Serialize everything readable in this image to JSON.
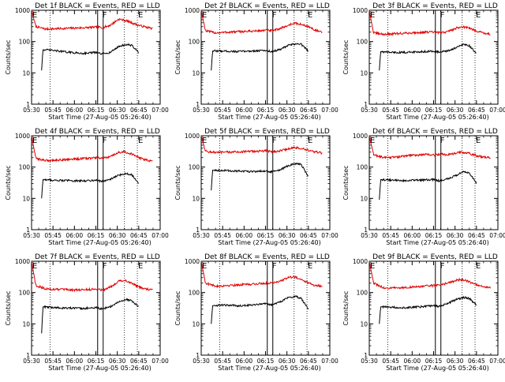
{
  "chart_data": [
    {
      "type": "line",
      "title": "Det 1f BLACK = Events, RED = LLD",
      "xlabel": "Start Time (27-Aug-05 05:26:40)",
      "ylabel": "Counts/sec",
      "yscale": "log",
      "ylim": [
        1,
        1000
      ],
      "xlim": [
        "05:30",
        "07:00"
      ],
      "x_ticks": [
        "05:30",
        "05:45",
        "06:00",
        "06:15",
        "06:30",
        "06:45",
        "07:00"
      ],
      "y_ticks": [
        "1",
        "10",
        "100",
        "1000"
      ],
      "markers": [
        {
          "time": "05:30",
          "label": "E"
        },
        {
          "time": "06:19",
          "label": "F"
        },
        {
          "time": "06:44",
          "label": "E"
        }
      ],
      "series": [
        {
          "name": "LLD",
          "color": "#e00000",
          "x": [
            "05:30",
            "05:33",
            "05:40",
            "05:50",
            "06:00",
            "06:10",
            "06:16",
            "06:20",
            "06:25",
            "06:31",
            "06:35",
            "06:40",
            "06:45",
            "06:50",
            "06:55"
          ],
          "values": [
            1000,
            300,
            250,
            260,
            270,
            280,
            290,
            280,
            330,
            520,
            480,
            400,
            330,
            290,
            260
          ]
        },
        {
          "name": "Events",
          "color": "#000000",
          "x": [
            "05:37",
            "05:38",
            "05:45",
            "05:55",
            "06:05",
            "06:15",
            "06:19",
            "06:25",
            "06:31",
            "06:36",
            "06:40",
            "06:45"
          ],
          "values": [
            12,
            55,
            52,
            46,
            42,
            45,
            40,
            45,
            70,
            80,
            76,
            45
          ]
        }
      ]
    },
    {
      "type": "line",
      "title": "Det 2f BLACK = Events, RED = LLD",
      "xlabel": "Start Time (27-Aug-05 05:26:40)",
      "ylabel": "Counts/sec",
      "yscale": "log",
      "ylim": [
        1,
        1000
      ],
      "xlim": [
        "05:30",
        "07:00"
      ],
      "x_ticks": [
        "05:30",
        "05:45",
        "06:00",
        "06:15",
        "06:30",
        "06:45",
        "07:00"
      ],
      "y_ticks": [
        "1",
        "10",
        "100",
        "1000"
      ],
      "markers": [
        {
          "time": "05:30",
          "label": "E"
        },
        {
          "time": "06:19",
          "label": "F"
        },
        {
          "time": "06:44",
          "label": "E"
        }
      ],
      "series": [
        {
          "name": "LLD",
          "color": "#e00000",
          "x": [
            "05:30",
            "05:33",
            "05:40",
            "05:50",
            "06:00",
            "06:10",
            "06:16",
            "06:20",
            "06:25",
            "06:31",
            "06:35",
            "06:40",
            "06:45",
            "06:50",
            "06:55"
          ],
          "values": [
            1000,
            220,
            190,
            200,
            210,
            220,
            230,
            220,
            260,
            330,
            390,
            350,
            300,
            230,
            190
          ]
        },
        {
          "name": "Events",
          "color": "#000000",
          "x": [
            "05:37",
            "05:38",
            "05:45",
            "05:55",
            "06:05",
            "06:15",
            "06:19",
            "06:25",
            "06:31",
            "06:36",
            "06:40",
            "06:45"
          ],
          "values": [
            12,
            50,
            50,
            48,
            50,
            52,
            48,
            55,
            75,
            85,
            82,
            50
          ]
        }
      ]
    },
    {
      "type": "line",
      "title": "Det 3f BLACK = Events, RED = LLD",
      "xlabel": "Start Time (27-Aug-05 05:26:40)",
      "ylabel": "Counts/sec",
      "yscale": "log",
      "ylim": [
        1,
        1000
      ],
      "xlim": [
        "05:30",
        "07:00"
      ],
      "x_ticks": [
        "05:30",
        "05:45",
        "06:00",
        "06:15",
        "06:30",
        "06:45",
        "07:00"
      ],
      "y_ticks": [
        "1",
        "10",
        "100",
        "1000"
      ],
      "markers": [
        {
          "time": "05:30",
          "label": "E"
        },
        {
          "time": "06:19",
          "label": "F"
        },
        {
          "time": "06:44",
          "label": "E"
        }
      ],
      "series": [
        {
          "name": "LLD",
          "color": "#e00000",
          "x": [
            "05:30",
            "05:33",
            "05:40",
            "05:50",
            "06:00",
            "06:10",
            "06:16",
            "06:20",
            "06:25",
            "06:31",
            "06:35",
            "06:40",
            "06:45",
            "06:50",
            "06:55"
          ],
          "values": [
            1000,
            190,
            170,
            180,
            190,
            200,
            200,
            190,
            210,
            270,
            300,
            270,
            220,
            190,
            170
          ]
        },
        {
          "name": "Events",
          "color": "#000000",
          "x": [
            "05:37",
            "05:38",
            "05:45",
            "05:55",
            "06:05",
            "06:15",
            "06:19",
            "06:25",
            "06:31",
            "06:36",
            "06:40",
            "06:45"
          ],
          "values": [
            12,
            48,
            45,
            45,
            47,
            50,
            46,
            50,
            65,
            80,
            75,
            40
          ]
        }
      ]
    },
    {
      "type": "line",
      "title": "Det 4f BLACK = Events, RED = LLD",
      "xlabel": "Start Time (27-Aug-05 05:26:40)",
      "ylabel": "Counts/sec",
      "yscale": "log",
      "ylim": [
        1,
        1000
      ],
      "xlim": [
        "05:30",
        "07:00"
      ],
      "x_ticks": [
        "05:30",
        "05:45",
        "06:00",
        "06:15",
        "06:30",
        "06:45",
        "07:00"
      ],
      "y_ticks": [
        "1",
        "10",
        "100",
        "1000"
      ],
      "markers": [
        {
          "time": "05:30",
          "label": "E"
        },
        {
          "time": "06:19",
          "label": "F"
        },
        {
          "time": "06:44",
          "label": "E"
        }
      ],
      "series": [
        {
          "name": "LLD",
          "color": "#e00000",
          "x": [
            "05:30",
            "05:33",
            "05:40",
            "05:50",
            "06:00",
            "06:10",
            "06:16",
            "06:20",
            "06:25",
            "06:31",
            "06:35",
            "06:40",
            "06:45",
            "06:50",
            "06:55"
          ],
          "values": [
            1000,
            190,
            160,
            170,
            180,
            190,
            200,
            190,
            210,
            290,
            310,
            260,
            200,
            170,
            150
          ]
        },
        {
          "name": "Events",
          "color": "#000000",
          "x": [
            "05:37",
            "05:38",
            "05:45",
            "05:55",
            "06:05",
            "06:15",
            "06:19",
            "06:25",
            "06:31",
            "06:36",
            "06:40",
            "06:45"
          ],
          "values": [
            10,
            40,
            38,
            37,
            36,
            38,
            35,
            40,
            55,
            62,
            58,
            30
          ]
        }
      ]
    },
    {
      "type": "line",
      "title": "Det 5f BLACK = Events, RED = LLD",
      "xlabel": "Start Time (27-Aug-05 05:26:40)",
      "ylabel": "Counts/sec",
      "yscale": "log",
      "ylim": [
        1,
        1000
      ],
      "xlim": [
        "05:30",
        "07:00"
      ],
      "x_ticks": [
        "05:30",
        "05:45",
        "06:00",
        "06:15",
        "06:30",
        "06:45",
        "07:00"
      ],
      "y_ticks": [
        "1",
        "10",
        "100",
        "1000"
      ],
      "markers": [
        {
          "time": "05:30",
          "label": "E"
        },
        {
          "time": "06:19",
          "label": "F"
        },
        {
          "time": "06:44",
          "label": "E"
        }
      ],
      "series": [
        {
          "name": "LLD",
          "color": "#e00000",
          "x": [
            "05:30",
            "05:33",
            "05:40",
            "05:50",
            "06:00",
            "06:10",
            "06:16",
            "06:20",
            "06:25",
            "06:31",
            "06:35",
            "06:40",
            "06:45",
            "06:50",
            "06:55"
          ],
          "values": [
            1000,
            320,
            290,
            300,
            310,
            320,
            330,
            310,
            330,
            380,
            420,
            390,
            340,
            300,
            280
          ]
        },
        {
          "name": "Events",
          "color": "#000000",
          "x": [
            "05:37",
            "05:38",
            "05:45",
            "05:55",
            "06:05",
            "06:15",
            "06:19",
            "06:25",
            "06:31",
            "06:36",
            "06:40",
            "06:45"
          ],
          "values": [
            18,
            80,
            78,
            74,
            72,
            75,
            70,
            80,
            110,
            130,
            120,
            50
          ]
        }
      ]
    },
    {
      "type": "line",
      "title": "Det 6f BLACK = Events, RED = LLD",
      "xlabel": "Start Time (27-Aug-05 05:26:40)",
      "ylabel": "Counts/sec",
      "yscale": "log",
      "ylim": [
        1,
        1000
      ],
      "xlim": [
        "05:30",
        "07:00"
      ],
      "x_ticks": [
        "05:30",
        "05:45",
        "06:00",
        "06:15",
        "06:30",
        "06:45",
        "07:00"
      ],
      "y_ticks": [
        "1",
        "10",
        "100",
        "1000"
      ],
      "markers": [
        {
          "time": "05:30",
          "label": "E"
        },
        {
          "time": "06:19",
          "label": "F"
        },
        {
          "time": "06:44",
          "label": "E"
        }
      ],
      "series": [
        {
          "name": "LLD",
          "color": "#e00000",
          "x": [
            "05:30",
            "05:33",
            "05:40",
            "05:50",
            "06:00",
            "06:10",
            "06:16",
            "06:20",
            "06:25",
            "06:31",
            "06:35",
            "06:40",
            "06:45",
            "06:50",
            "06:55"
          ],
          "values": [
            1000,
            250,
            200,
            210,
            240,
            250,
            240,
            260,
            250,
            280,
            300,
            270,
            230,
            210,
            200
          ]
        },
        {
          "name": "Events",
          "color": "#000000",
          "x": [
            "05:37",
            "05:38",
            "05:45",
            "05:55",
            "06:05",
            "06:15",
            "06:19",
            "06:25",
            "06:31",
            "06:36",
            "06:40",
            "06:45"
          ],
          "values": [
            9,
            40,
            38,
            37,
            38,
            40,
            36,
            42,
            55,
            70,
            65,
            30
          ]
        }
      ]
    },
    {
      "type": "line",
      "title": "Det 7f BLACK = Events, RED = LLD",
      "xlabel": "Start Time (27-Aug-05 05:26:40)",
      "ylabel": "Counts/sec",
      "yscale": "log",
      "ylim": [
        1,
        1000
      ],
      "xlim": [
        "05:30",
        "07:00"
      ],
      "x_ticks": [
        "05:30",
        "05:45",
        "06:00",
        "06:15",
        "06:30",
        "06:45",
        "07:00"
      ],
      "y_ticks": [
        "1",
        "10",
        "100",
        "1000"
      ],
      "markers": [
        {
          "time": "05:30",
          "label": "E"
        },
        {
          "time": "06:19",
          "label": "F"
        },
        {
          "time": "06:44",
          "label": "E"
        }
      ],
      "series": [
        {
          "name": "LLD",
          "color": "#e00000",
          "x": [
            "05:30",
            "05:33",
            "05:40",
            "05:50",
            "06:00",
            "06:10",
            "06:16",
            "06:20",
            "06:25",
            "06:31",
            "06:35",
            "06:40",
            "06:45",
            "06:50",
            "06:55"
          ],
          "values": [
            1000,
            170,
            130,
            125,
            120,
            125,
            130,
            120,
            150,
            230,
            250,
            200,
            150,
            130,
            120
          ]
        },
        {
          "name": "Events",
          "color": "#000000",
          "x": [
            "05:37",
            "05:38",
            "05:45",
            "05:55",
            "06:05",
            "06:15",
            "06:19",
            "06:25",
            "06:31",
            "06:36",
            "06:40",
            "06:45"
          ],
          "values": [
            5,
            35,
            33,
            32,
            31,
            33,
            30,
            35,
            50,
            60,
            55,
            35
          ]
        }
      ]
    },
    {
      "type": "line",
      "title": "Det 8f BLACK = Events, RED = LLD",
      "xlabel": "Start Time (27-Aug-05 05:26:40)",
      "ylabel": "Counts/sec",
      "yscale": "log",
      "ylim": [
        1,
        1000
      ],
      "xlim": [
        "05:30",
        "07:00"
      ],
      "x_ticks": [
        "05:30",
        "05:45",
        "06:00",
        "06:15",
        "06:30",
        "06:45",
        "07:00"
      ],
      "y_ticks": [
        "1",
        "10",
        "100",
        "1000"
      ],
      "markers": [
        {
          "time": "05:30",
          "label": "E"
        },
        {
          "time": "06:19",
          "label": "F"
        },
        {
          "time": "06:44",
          "label": "E"
        }
      ],
      "series": [
        {
          "name": "LLD",
          "color": "#e00000",
          "x": [
            "05:30",
            "05:33",
            "05:40",
            "05:50",
            "06:00",
            "06:10",
            "06:16",
            "06:20",
            "06:25",
            "06:31",
            "06:35",
            "06:40",
            "06:45",
            "06:50",
            "06:55"
          ],
          "values": [
            1000,
            200,
            160,
            170,
            180,
            190,
            200,
            210,
            230,
            300,
            320,
            270,
            200,
            170,
            160
          ]
        },
        {
          "name": "Events",
          "color": "#000000",
          "x": [
            "05:37",
            "05:38",
            "05:45",
            "05:55",
            "06:05",
            "06:15",
            "06:19",
            "06:25",
            "06:31",
            "06:36",
            "06:40",
            "06:45"
          ],
          "values": [
            10,
            38,
            40,
            38,
            40,
            45,
            40,
            50,
            70,
            75,
            65,
            30
          ]
        }
      ]
    },
    {
      "type": "line",
      "title": "Det 9f BLACK = Events, RED = LLD",
      "xlabel": "Start Time (27-Aug-05 05:26:40)",
      "ylabel": "Counts/sec",
      "yscale": "log",
      "ylim": [
        1,
        1000
      ],
      "xlim": [
        "05:30",
        "07:00"
      ],
      "x_ticks": [
        "05:30",
        "05:45",
        "06:00",
        "06:15",
        "06:30",
        "06:45",
        "07:00"
      ],
      "y_ticks": [
        "1",
        "10",
        "100",
        "1000"
      ],
      "markers": [
        {
          "time": "05:30",
          "label": "E"
        },
        {
          "time": "06:19",
          "label": "F"
        },
        {
          "time": "06:44",
          "label": "E"
        }
      ],
      "series": [
        {
          "name": "LLD",
          "color": "#e00000",
          "x": [
            "05:30",
            "05:33",
            "05:40",
            "05:50",
            "06:00",
            "06:10",
            "06:16",
            "06:20",
            "06:25",
            "06:31",
            "06:35",
            "06:40",
            "06:45",
            "06:50",
            "06:55"
          ],
          "values": [
            1000,
            200,
            140,
            140,
            150,
            160,
            170,
            180,
            200,
            250,
            260,
            220,
            180,
            150,
            140
          ]
        },
        {
          "name": "Events",
          "color": "#000000",
          "x": [
            "05:37",
            "05:38",
            "05:45",
            "05:55",
            "06:05",
            "06:15",
            "06:19",
            "06:25",
            "06:31",
            "06:36",
            "06:40",
            "06:45"
          ],
          "values": [
            10,
            35,
            34,
            33,
            35,
            38,
            36,
            45,
            60,
            70,
            65,
            40
          ]
        }
      ]
    }
  ]
}
